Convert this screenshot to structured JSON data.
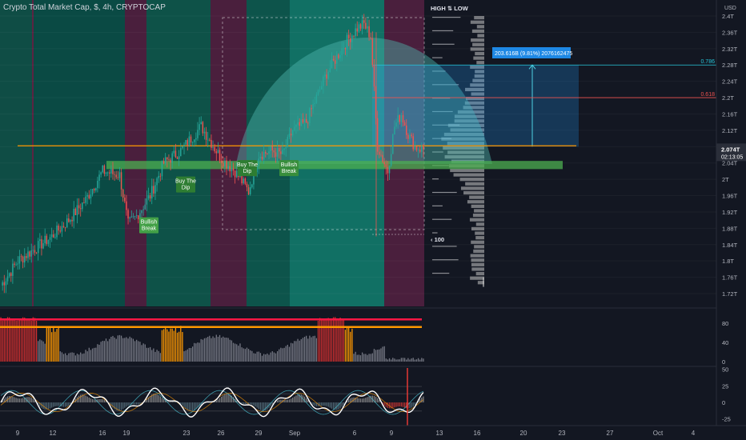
{
  "header": {
    "title": "Crypto Total Market Cap, $, 4h, CRYPTOCAP"
  },
  "chart_data": {
    "type": "candlestick",
    "price_axis": {
      "unit_label": "USD",
      "range": [
        1.7,
        2.42
      ],
      "ticks": [
        "2.4T",
        "2.36T",
        "2.32T",
        "2.28T",
        "2.24T",
        "2.2T",
        "2.16T",
        "2.12T",
        "2.08T",
        "2.04T",
        "2T",
        "1.96T",
        "1.92T",
        "1.88T",
        "1.84T",
        "1.8T",
        "1.76T",
        "1.72T"
      ],
      "tick_values": [
        2.4,
        2.36,
        2.32,
        2.28,
        2.24,
        2.2,
        2.16,
        2.12,
        2.08,
        2.04,
        2.0,
        1.96,
        1.92,
        1.88,
        1.84,
        1.8,
        1.76,
        1.72
      ]
    },
    "current_price": {
      "label": "2.074T",
      "countdown": "02:13:05",
      "value": 2.074
    },
    "time_axis": {
      "labels": [
        "9",
        "12",
        "16",
        "19",
        "23",
        "26",
        "29",
        "Sep",
        "6",
        "9",
        "13",
        "16",
        "20",
        "23",
        "27",
        "Oct",
        "4"
      ]
    },
    "series": [
      {
        "name": "price",
        "anchors": [
          [
            0,
            1.74
          ],
          [
            10,
            1.8
          ],
          [
            20,
            1.83
          ],
          [
            30,
            1.86
          ],
          [
            40,
            1.9
          ],
          [
            50,
            1.95
          ],
          [
            60,
            2.02
          ],
          [
            70,
            2.01
          ],
          [
            75,
            1.89
          ],
          [
            80,
            1.91
          ],
          [
            88,
            1.96
          ],
          [
            96,
            2.04
          ],
          [
            106,
            2.07
          ],
          [
            118,
            2.13
          ],
          [
            124,
            2.09
          ],
          [
            130,
            2.05
          ],
          [
            138,
            2.02
          ],
          [
            146,
            1.97
          ],
          [
            152,
            2.06
          ],
          [
            160,
            2.07
          ],
          [
            166,
            2.06
          ],
          [
            172,
            2.12
          ],
          [
            180,
            2.14
          ],
          [
            186,
            2.2
          ],
          [
            192,
            2.26
          ],
          [
            198,
            2.3
          ],
          [
            204,
            2.34
          ],
          [
            210,
            2.37
          ],
          [
            214,
            2.38
          ],
          [
            218,
            2.35
          ],
          [
            222,
            2.08
          ],
          [
            228,
            2.02
          ],
          [
            232,
            2.13
          ],
          [
            236,
            2.16
          ],
          [
            240,
            2.11
          ],
          [
            244,
            2.08
          ],
          [
            248,
            2.074
          ]
        ]
      }
    ],
    "annotations": {
      "high_low_label": "HIGH ⇅ LOW",
      "profile_count_label": "100",
      "fib_levels": [
        {
          "label": "0.786",
          "value": 2.28
        },
        {
          "label": "0.618",
          "value": 2.2
        }
      ],
      "measure_label": "203.616B (9.81%) 2076162475",
      "support_zone": [
        2.025,
        2.045
      ],
      "orange_line": 2.082,
      "signals": [
        {
          "text_1": "Bullish",
          "text_2": "Break",
          "value": 1.905
        },
        {
          "text_1": "Buy The",
          "text_2": "Dip",
          "value": 2.005
        },
        {
          "text_1": "Buy The",
          "text_2": "Dip",
          "value": 2.045
        },
        {
          "text_1": "Bullish",
          "text_2": "Break",
          "value": 2.045
        }
      ]
    },
    "indicator_1": {
      "ticks": [
        "80",
        "40",
        "0"
      ],
      "tick_values": [
        80,
        40,
        0
      ],
      "range": [
        0,
        100
      ],
      "levels": [
        {
          "value": 88,
          "color": "#ff1744"
        },
        {
          "value": 72,
          "color": "#ff9800"
        }
      ]
    },
    "indicator_2": {
      "ticks": [
        "50",
        "25",
        "0",
        "-25"
      ],
      "tick_values": [
        50,
        25,
        0,
        -25
      ],
      "range": [
        -35,
        52
      ]
    }
  },
  "colors": {
    "up": "#26a69a",
    "down": "#ef5350",
    "band_green": "#0f4d45",
    "band_maroon": "#4a1f3d",
    "zone": "#4caf50",
    "orange": "#ff9800",
    "fib_cyan": "#26c6da",
    "fib_red": "#ef5350",
    "signal_bg": "#2e7d32",
    "grid": "#1e222d",
    "text": "#b2b5be"
  }
}
